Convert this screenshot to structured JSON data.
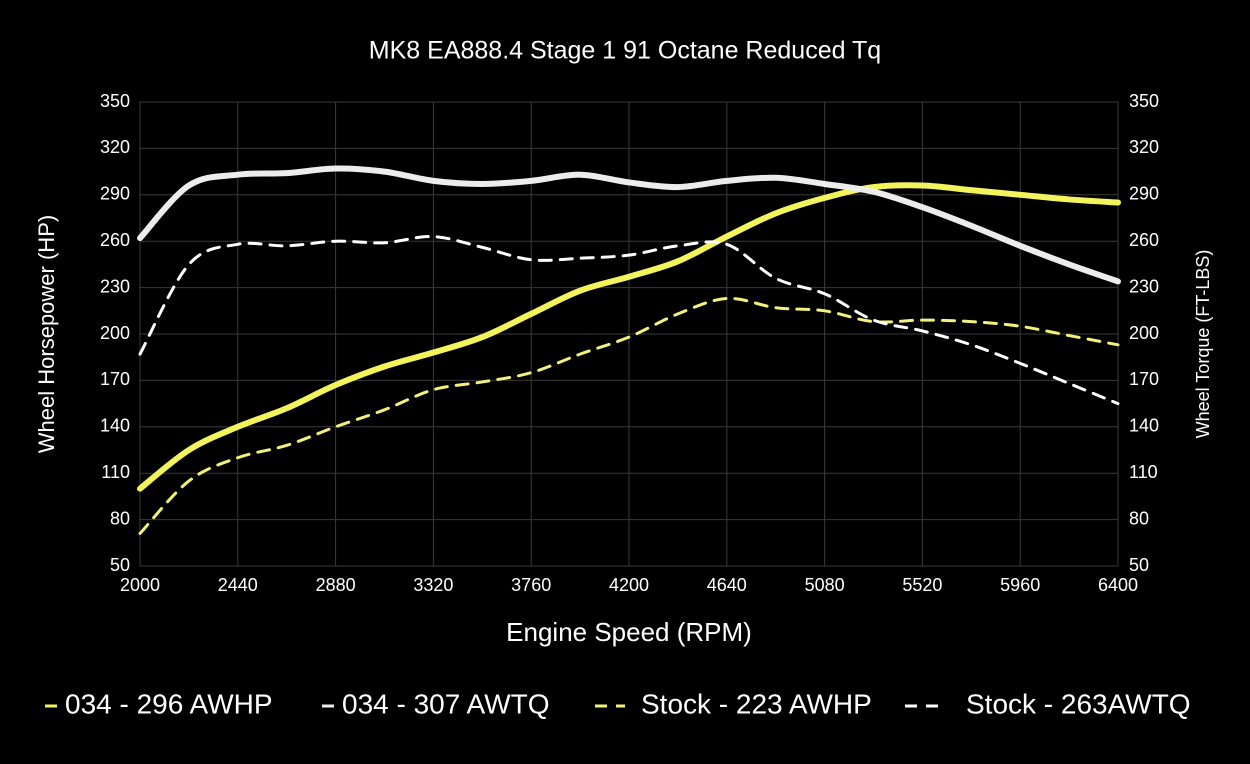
{
  "chart_data": {
    "type": "line",
    "title": "MK8 EA888.4 Stage 1 91 Octane Reduced Tq",
    "x_label": "Engine Speed (RPM)",
    "y_label": "Wheel Horsepower (HP)",
    "y2_label": "Wheel Torque (FT-LBS)",
    "x": [
      2000,
      2220,
      2440,
      2660,
      2880,
      3100,
      3320,
      3540,
      3760,
      3980,
      4200,
      4420,
      4640,
      4860,
      5080,
      5300,
      5520,
      5740,
      5960,
      6180,
      6400
    ],
    "xlim": [
      2000,
      6400
    ],
    "xticks": [
      2000,
      2440,
      2880,
      3320,
      3760,
      4200,
      4640,
      5080,
      5520,
      5960,
      6400
    ],
    "ylim": [
      50,
      350
    ],
    "yticks": [
      50,
      80,
      110,
      140,
      170,
      200,
      230,
      260,
      290,
      320,
      350
    ],
    "y2lim": [
      50,
      350
    ],
    "y2ticks": [
      50,
      80,
      110,
      140,
      170,
      200,
      230,
      260,
      290,
      320,
      350
    ],
    "grid": true,
    "legend": "bottom",
    "series": [
      {
        "name": "034 - 296 AWHP",
        "color": "#f3f35c",
        "style": "solid",
        "values": [
          100,
          125,
          140,
          152,
          167,
          179,
          188,
          198,
          213,
          228,
          237,
          247,
          263,
          278,
          288,
          295,
          296,
          293,
          290,
          287,
          285
        ]
      },
      {
        "name": "034 - 307 AWTQ",
        "color": "#ececec",
        "style": "solid",
        "axis": "y2",
        "values": [
          262,
          296,
          303,
          304,
          307,
          305,
          299,
          297,
          299,
          303,
          298,
          295,
          299,
          301,
          297,
          292,
          282,
          270,
          257,
          245,
          234
        ]
      },
      {
        "name": "Stock - 223 AWHP",
        "color": "#f2f27a",
        "style": "dashed",
        "values": [
          71,
          105,
          120,
          128,
          140,
          151,
          164,
          169,
          175,
          187,
          198,
          213,
          223,
          217,
          215,
          208,
          209,
          208,
          205,
          199,
          193
        ]
      },
      {
        "name": "Stock - 263AWTQ",
        "color": "#ffffff",
        "style": "dashed",
        "axis": "y2",
        "values": [
          187,
          245,
          258,
          257,
          260,
          259,
          263,
          256,
          248,
          249,
          251,
          257,
          258,
          236,
          226,
          209,
          202,
          193,
          181,
          168,
          155
        ]
      }
    ]
  }
}
